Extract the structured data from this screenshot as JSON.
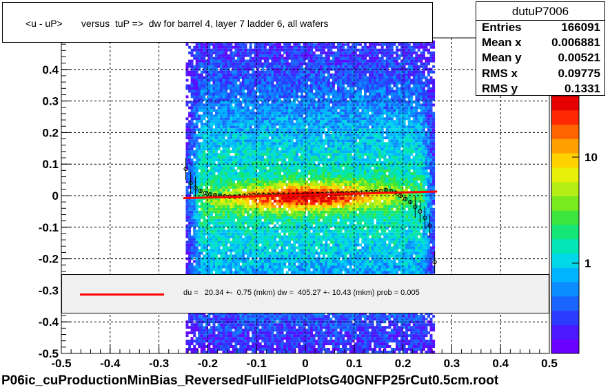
{
  "chart_data": {
    "type": "heatmap",
    "title": "<u - uP>       versus  tuP =>  dw for barrel 4, layer 7 ladder 6, all wafers",
    "xlim": [
      -0.5,
      0.5
    ],
    "ylim": [
      -0.5,
      0.5
    ],
    "x_ticks": [
      "-0.5",
      "-0.4",
      "-0.3",
      "-0.2",
      "-0.1",
      "0",
      "0.1",
      "0.2",
      "0.3",
      "0.4",
      "0.5"
    ],
    "y_ticks": [
      "-0.5",
      "-0.4",
      "-0.3",
      "-0.2",
      "-0.1",
      "0",
      "0.1",
      "0.2",
      "0.3",
      "0.4"
    ],
    "grid": true,
    "colorbar": {
      "scale": "log",
      "tick_labels": [
        "1",
        "10"
      ]
    },
    "profile_x": [
      -0.245,
      -0.235,
      -0.225,
      -0.215,
      -0.205,
      -0.195,
      -0.185,
      -0.175,
      -0.165,
      -0.155,
      -0.145,
      -0.135,
      -0.125,
      -0.115,
      -0.105,
      -0.095,
      -0.085,
      -0.075,
      -0.065,
      -0.055,
      -0.045,
      -0.035,
      -0.025,
      -0.015,
      -0.005,
      0.005,
      0.015,
      0.025,
      0.035,
      0.045,
      0.055,
      0.065,
      0.075,
      0.085,
      0.095,
      0.105,
      0.115,
      0.125,
      0.135,
      0.145,
      0.155,
      0.165,
      0.175,
      0.185,
      0.195,
      0.205,
      0.215,
      0.225,
      0.235,
      0.245,
      0.255,
      0.265
    ],
    "profile_y": [
      0.085,
      0.04,
      0.025,
      0.015,
      0.008,
      0.004,
      0.002,
      0.0,
      -0.002,
      -0.003,
      -0.003,
      -0.002,
      0.0,
      0.001,
      0.002,
      0.003,
      0.003,
      0.003,
      0.003,
      0.003,
      0.003,
      0.003,
      0.003,
      0.003,
      0.003,
      0.003,
      0.004,
      0.005,
      0.005,
      0.006,
      0.007,
      0.007,
      0.008,
      0.008,
      0.009,
      0.01,
      0.01,
      0.011,
      0.012,
      0.012,
      0.015,
      0.018,
      0.015,
      0.01,
      0.0,
      -0.01,
      -0.02,
      -0.035,
      -0.05,
      -0.07,
      -0.095,
      -0.21
    ],
    "fit_line": {
      "x": [
        -0.25,
        0.27
      ],
      "y": [
        -0.008,
        0.013
      ],
      "color": "#ff0000"
    },
    "legend": {
      "text": "du =   20.34 +-  0.75 (mkm) dw =  405.27 +- 10.43 (mkm) prob = 0.005",
      "color": "#ff0000"
    },
    "stats": {
      "name": "dutuP7006",
      "rows": [
        {
          "label": "Entries",
          "value": "166091"
        },
        {
          "label": "Mean x",
          "value": "0.006881"
        },
        {
          "label": "Mean y",
          "value": "0.00521"
        },
        {
          "label": "RMS x",
          "value": "0.09775"
        },
        {
          "label": "RMS y",
          "value": "0.1331"
        }
      ]
    }
  },
  "footer": "P06ic_cuProductionMinBias_ReversedFullFieldPlotsG40GNFP25rCut0.5cm.root"
}
